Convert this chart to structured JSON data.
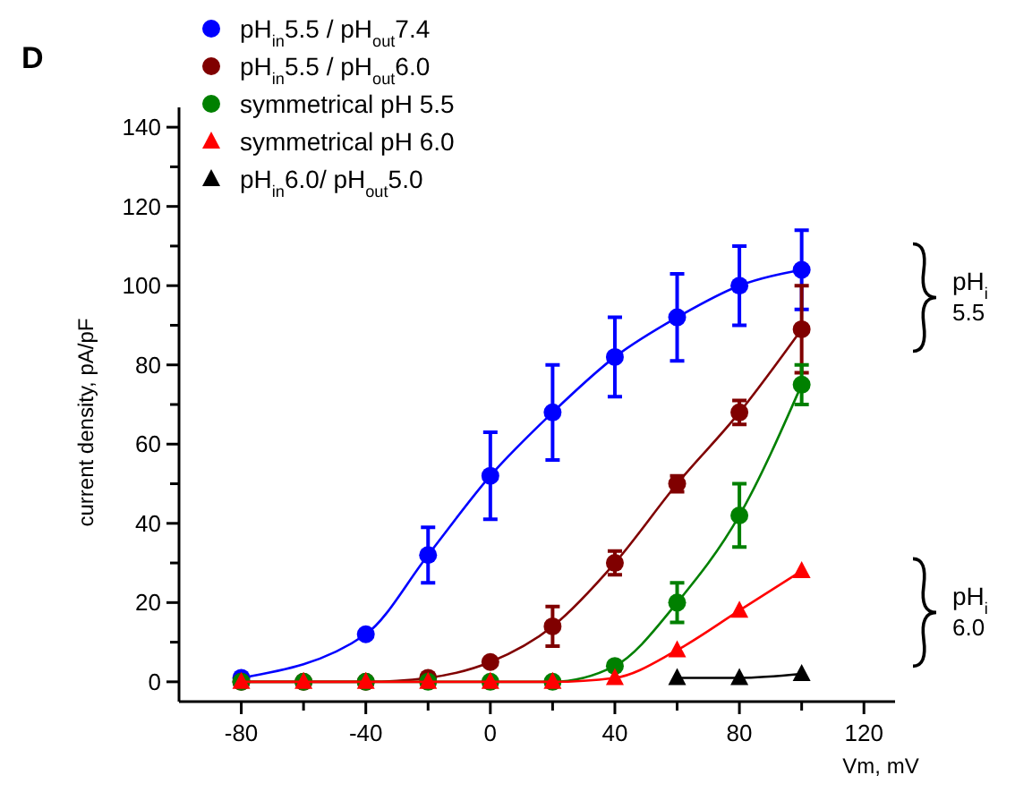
{
  "chart_data": {
    "type": "line",
    "title": "D",
    "xlabel": "Vm, mV",
    "ylabel": "current density, pA/pF",
    "x": [
      -80,
      -60,
      -40,
      -20,
      0,
      20,
      40,
      60,
      80,
      100
    ],
    "xlim": [
      -100,
      130
    ],
    "xticks": [
      -80,
      {
        "value": -60,
        "label": null
      },
      -40,
      {
        "value": -20,
        "label": null
      },
      0,
      {
        "value": 20,
        "label": null
      },
      40,
      {
        "value": 60,
        "label": null
      },
      80,
      {
        "value": 100,
        "label": null
      },
      120
    ],
    "ylim": [
      -5,
      145
    ],
    "yticks": [
      0,
      {
        "value": 10,
        "label": null
      },
      20,
      {
        "value": 30,
        "label": null
      },
      40,
      {
        "value": 50,
        "label": null
      },
      60,
      {
        "value": 70,
        "label": null
      },
      80,
      {
        "value": 90,
        "label": null
      },
      100,
      {
        "value": 110,
        "label": null
      },
      120,
      {
        "value": 130,
        "label": null
      },
      140
    ],
    "grid": false,
    "legend": "top left",
    "line_style": "solid",
    "series": [
      {
        "name": "pH$_{in}$5.5 / pH$_{out}$7.4",
        "color": "#0000ff",
        "marker": "circle",
        "values": [
          1,
          null,
          12,
          32,
          52,
          68,
          82,
          92,
          100,
          104
        ],
        "errors": [
          null,
          null,
          null,
          7,
          11,
          12,
          10,
          11,
          10,
          10
        ]
      },
      {
        "name": "pH$_{in}$5.5 / pH$_{out}$6.0",
        "color": "#800000",
        "marker": "circle",
        "values": [
          0,
          0,
          0,
          1,
          5,
          14,
          30,
          50,
          68,
          89
        ],
        "errors": [
          null,
          null,
          null,
          null,
          null,
          5,
          3,
          2,
          3,
          11
        ]
      },
      {
        "name": "symmetrical pH 5.5",
        "color": "#008000",
        "marker": "circle",
        "values": [
          0,
          0,
          0,
          0,
          0,
          0,
          4,
          20,
          42,
          75
        ],
        "errors": [
          null,
          null,
          null,
          null,
          null,
          null,
          null,
          5,
          8,
          5
        ]
      },
      {
        "name": "symmetrical pH 6.0",
        "color": "#ff0000",
        "marker": "triangle",
        "values": [
          0,
          0,
          0,
          0,
          0,
          0,
          1,
          8,
          18,
          28
        ]
      },
      {
        "name": "pH$_{in}$6.0/ pH$_{out}$5.0",
        "color": "#000000",
        "marker": "triangle",
        "values": [
          null,
          null,
          null,
          null,
          null,
          null,
          null,
          1,
          1,
          2
        ]
      }
    ],
    "annotations": [
      "pH$_{i}$ 5.5",
      "pH$_{i}$ 6.0"
    ]
  }
}
